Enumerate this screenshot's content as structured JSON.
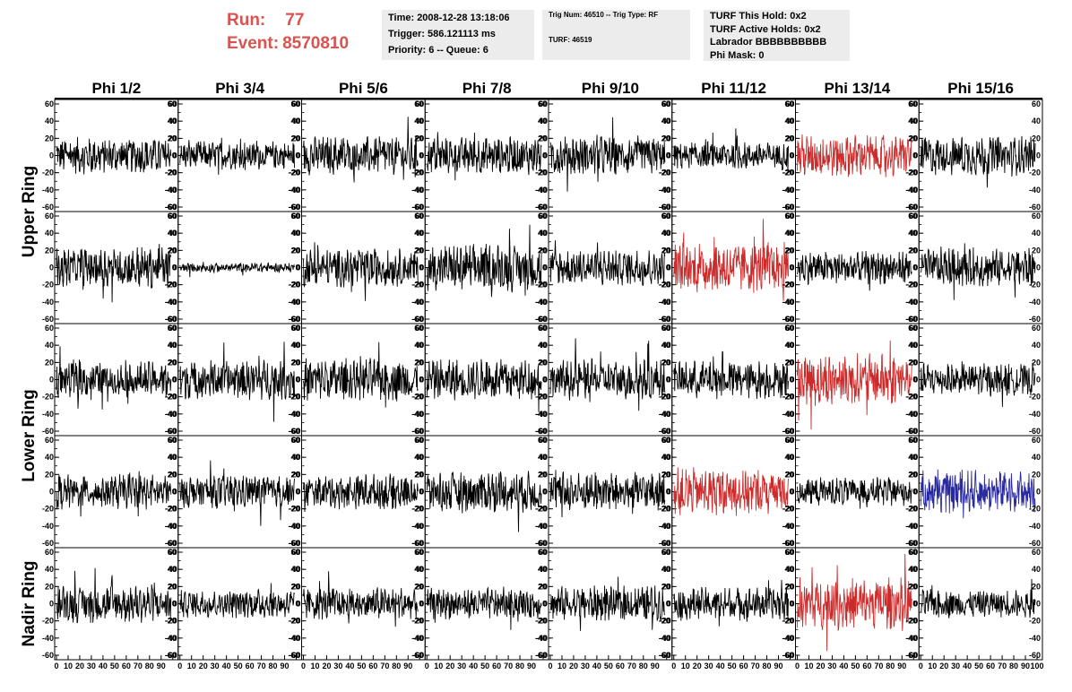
{
  "header": {
    "run_label": "Run:",
    "run_value": "77",
    "event_label": "Event:",
    "event_value": "8570810",
    "time_line": "Time: 2008-12-28 13:18:06",
    "trigger_line": "Trigger: 586.121113 ms",
    "priority_line": "Priority: 6 -- Queue: 6",
    "trig_num_line": "Trig Num: 46510 -- Trig Type: RF",
    "turf_line": "TURF: 46519",
    "turf_hold_line": "TURF This Hold: 0x2",
    "turf_active_line": "TURF Active Holds: 0x2",
    "labrador_line": "Labrador BBBBBBBBBB",
    "phi_mask_line": "Phi Mask: 0"
  },
  "chart_data": {
    "type": "line",
    "columns": [
      "Phi 1/2",
      "Phi 3/4",
      "Phi 5/6",
      "Phi 7/8",
      "Phi 9/10",
      "Phi 11/12",
      "Phi 13/14",
      "Phi 15/16"
    ],
    "rows": [
      {
        "label": "Upper Ring",
        "count": 2
      },
      {
        "label": "Lower Ring",
        "count": 2
      },
      {
        "label": "Nadir Ring",
        "count": 1
      }
    ],
    "ylim": [
      -60,
      60
    ],
    "yticks": [
      -60,
      -40,
      -20,
      0,
      20,
      40,
      60
    ],
    "xlim": [
      0,
      100
    ],
    "xticks": [
      "0",
      "10",
      "20",
      "30",
      "40",
      "50",
      "60",
      "70",
      "80",
      "90",
      "100"
    ],
    "colors": {
      "normal": "#000000",
      "highlight": "#cc2b2b",
      "blue": "#2a2aa0",
      "header": "#d9534f"
    },
    "amplitudes": [
      [
        15,
        12,
        16,
        16,
        17,
        12,
        18,
        17
      ],
      [
        18,
        4,
        16,
        20,
        16,
        22,
        14,
        17
      ],
      [
        15,
        17,
        18,
        17,
        17,
        16,
        22,
        14
      ],
      [
        15,
        14,
        15,
        18,
        17,
        20,
        12,
        18
      ],
      [
        16,
        12,
        14,
        13,
        15,
        14,
        22,
        12
      ]
    ],
    "highlights": [
      {
        "row": 0,
        "col": 6,
        "color": "highlight"
      },
      {
        "row": 1,
        "col": 5,
        "color": "highlight"
      },
      {
        "row": 2,
        "col": 6,
        "color": "highlight"
      },
      {
        "row": 3,
        "col": 5,
        "color": "highlight"
      },
      {
        "row": 3,
        "col": 7,
        "color": "blue"
      },
      {
        "row": 4,
        "col": 6,
        "color": "highlight"
      }
    ]
  }
}
